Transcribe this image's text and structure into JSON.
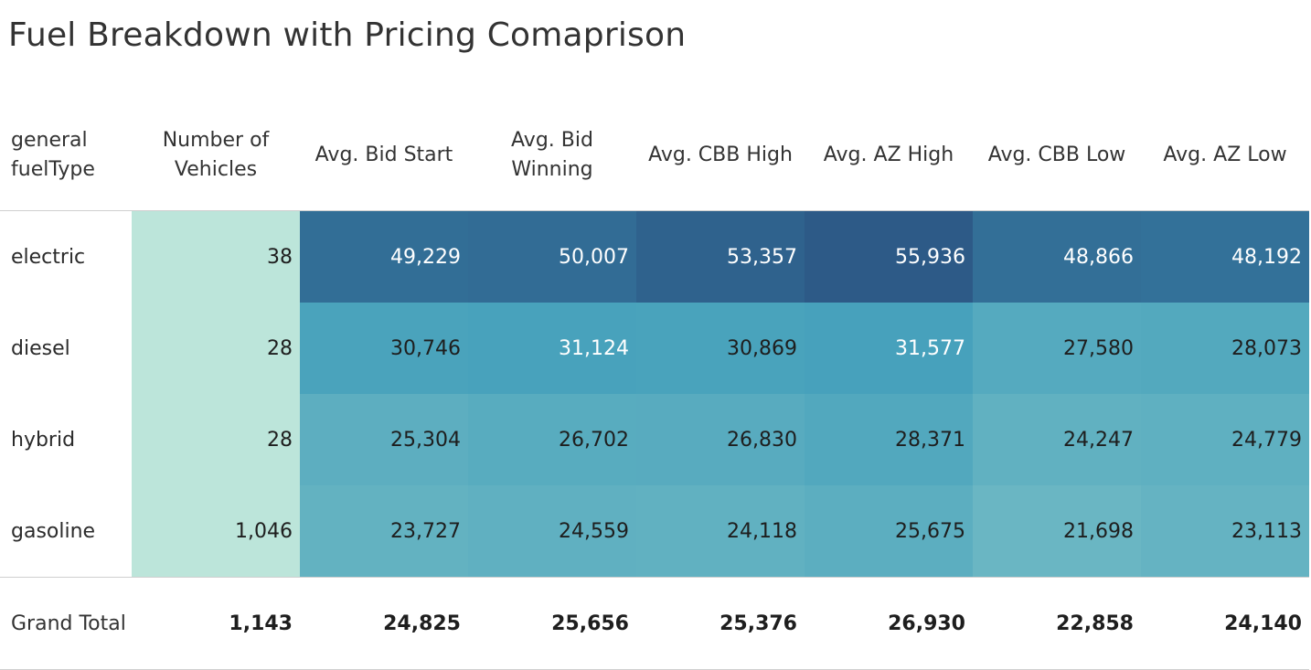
{
  "title": "Fuel Breakdown with Pricing Comaprison",
  "chart_data": {
    "type": "table",
    "title": "Fuel Breakdown with Pricing Comaprison",
    "row_header": "general fuelType",
    "columns": [
      "Number of Vehicles",
      "Avg. Bid Start",
      "Avg. Bid Winning",
      "Avg. CBB High",
      "Avg. AZ High",
      "Avg. CBB Low",
      "Avg. AZ Low"
    ],
    "rows": [
      {
        "label": "electric",
        "values": [
          38,
          49229,
          50007,
          53357,
          55936,
          48866,
          48192
        ]
      },
      {
        "label": "diesel",
        "values": [
          28,
          30746,
          31124,
          30869,
          31577,
          27580,
          28073
        ]
      },
      {
        "label": "hybrid",
        "values": [
          28,
          25304,
          26702,
          26830,
          28371,
          24247,
          24779
        ]
      },
      {
        "label": "gasoline",
        "values": [
          1046,
          23727,
          24559,
          24118,
          25675,
          21698,
          23113
        ]
      }
    ],
    "grand_total": {
      "label": "Grand Total",
      "values": [
        1143,
        24825,
        25656,
        25376,
        26930,
        22858,
        24140
      ]
    },
    "colors": {
      "count_column": "#bce5da",
      "scale_low": "#6ab6c3",
      "scale_mid": "#3f9dba",
      "scale_high": "#2d5a87"
    }
  }
}
